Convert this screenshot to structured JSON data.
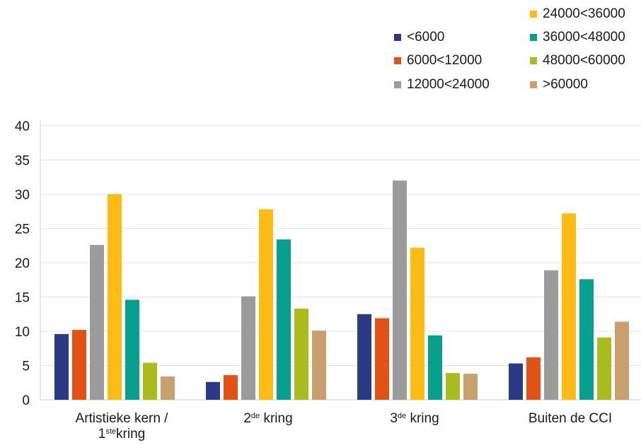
{
  "chart_data": {
    "type": "bar",
    "categories": [
      {
        "pre": "Artistieke kern /",
        "line2_base": "1",
        "line2_sup": "ste",
        "line2_post": "kring"
      },
      {
        "pre": "2",
        "sup": "de",
        "post": " kring"
      },
      {
        "pre": "3",
        "sup": "de",
        "post": " kring"
      },
      {
        "pre": "Buiten de CCI"
      }
    ],
    "series": [
      {
        "name": "<6000",
        "color": "#2b3a87",
        "values": [
          9.6,
          2.6,
          12.5,
          5.3
        ]
      },
      {
        "name": "6000<12000",
        "color": "#e05314",
        "values": [
          10.2,
          3.6,
          11.9,
          6.2
        ]
      },
      {
        "name": "12000<24000",
        "color": "#9b9b9b",
        "values": [
          22.6,
          15.1,
          32.0,
          18.9
        ]
      },
      {
        "name": "24000<36000",
        "color": "#fdbb13",
        "values": [
          30.0,
          27.8,
          22.2,
          27.2
        ]
      },
      {
        "name": "36000<48000",
        "color": "#079f8e",
        "values": [
          14.6,
          23.4,
          9.4,
          17.6
        ]
      },
      {
        "name": "48000<60000",
        "color": "#aabb1c",
        "values": [
          5.4,
          13.3,
          3.9,
          9.1
        ]
      },
      {
        "name": ">60000",
        "color": "#c9a06e",
        "values": [
          3.4,
          10.1,
          3.8,
          11.4
        ]
      }
    ],
    "yticks": [
      "0",
      "5",
      "10",
      "15",
      "20",
      "25",
      "30",
      "35",
      "40"
    ],
    "ylim": [
      0,
      40
    ],
    "grid": true,
    "legend_position": "top-right"
  }
}
